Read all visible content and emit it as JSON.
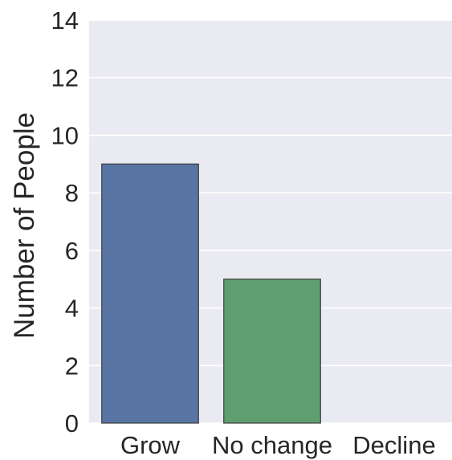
{
  "chart_data": {
    "type": "bar",
    "categories": [
      "Grow",
      "No change",
      "Decline"
    ],
    "values": [
      9,
      5,
      0
    ],
    "colors": [
      "#5875a4",
      "#5f9e6e",
      "#b55d60"
    ],
    "title": "",
    "xlabel": "",
    "ylabel": "Number of People",
    "ylim": [
      0,
      14
    ],
    "yticks": [
      0,
      2,
      4,
      6,
      8,
      10,
      12,
      14
    ],
    "grid": true,
    "background": "#eaeaf2",
    "grid_color": "#ffffff",
    "bar_edge_color": "#3c3c3c"
  }
}
